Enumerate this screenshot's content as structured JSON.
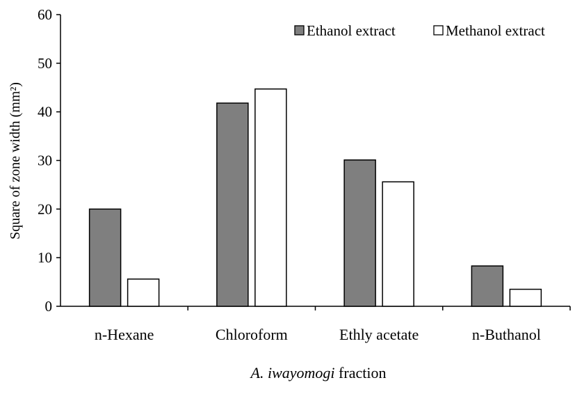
{
  "chart_data": {
    "type": "bar",
    "title": "",
    "categories": [
      "n-Hexane",
      "Chloroform",
      "Ethly acetate",
      "n-Buthanol"
    ],
    "series": [
      {
        "name": "Ethanol extract",
        "color": "#7f7f7f",
        "values": [
          20,
          41.8,
          30.1,
          8.3
        ]
      },
      {
        "name": "Methanol extract",
        "color": "#ffffff",
        "values": [
          5.6,
          44.7,
          25.6,
          3.5
        ]
      }
    ],
    "xlabel": {
      "italic": "A. iwayomogi",
      "rest": " fraction"
    },
    "ylabel": "Square of zone width (mm²)",
    "ylim": [
      0,
      60
    ],
    "yticks": [
      0,
      10,
      20,
      30,
      40,
      50,
      60
    ],
    "grid": false,
    "legend_position": "top-right"
  }
}
